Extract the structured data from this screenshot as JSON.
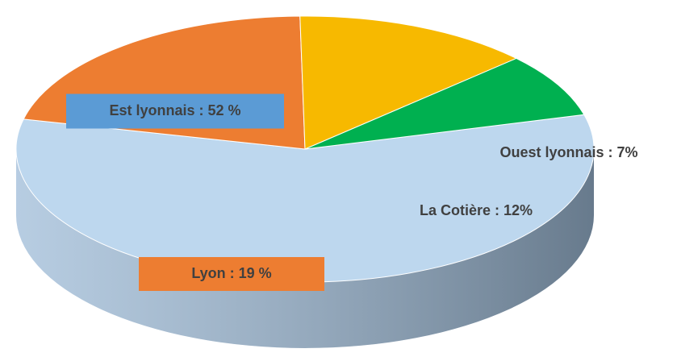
{
  "chart_data": {
    "type": "pie",
    "values": [
      52,
      19,
      12,
      7
    ],
    "value_labels": [
      "Est lyonnais : 52 %",
      "Lyon : 19 %",
      "La Cotière : 12%",
      "Ouest lyonnais : 7%"
    ],
    "colors": [
      "#bdd7ee",
      "#ed7d31",
      "#f7b900",
      "#00b050"
    ],
    "side_colors": [
      "#9fbcd8",
      "#b5561a",
      "#7f6300",
      "#03582a"
    ],
    "label_box_colors": [
      "#5b9bd5",
      "#ed7d31",
      null,
      null
    ]
  }
}
